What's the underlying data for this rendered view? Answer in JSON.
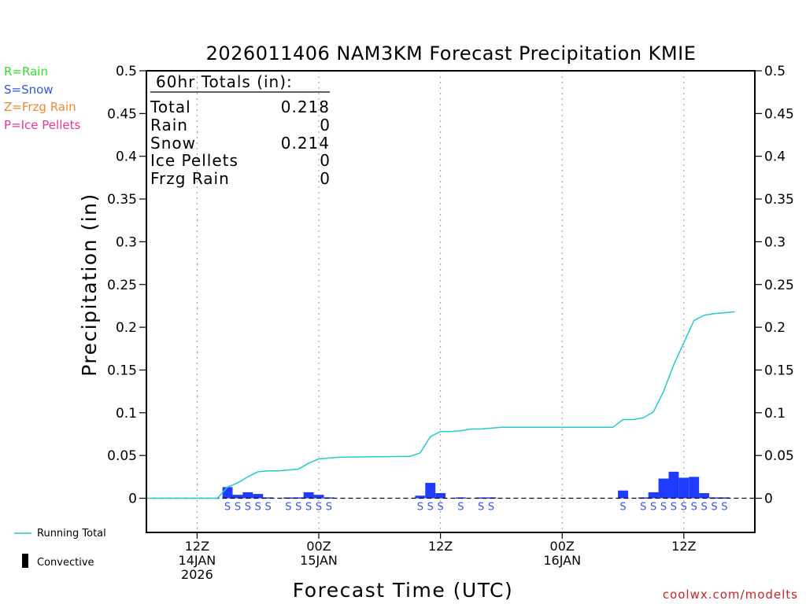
{
  "chart_data": {
    "type": "bar",
    "title": "2026011406 NAM3KM Forecast Precipitation KMIE",
    "ylabel": "Precipitation (in)",
    "xlabel": "Forecast Time (UTC)",
    "ylim": [
      -0.04,
      0.5
    ],
    "yticks": [
      0,
      0.05,
      0.1,
      0.15,
      0.2,
      0.25,
      0.3,
      0.35,
      0.4,
      0.45,
      0.5
    ],
    "xlim": [
      1,
      61
    ],
    "xticks": [
      {
        "hour": 6,
        "line1": "12Z",
        "line2": "14JAN",
        "line3": "2026"
      },
      {
        "hour": 18,
        "line1": "00Z",
        "line2": "15JAN",
        "line3": ""
      },
      {
        "hour": 30,
        "line1": "12Z",
        "line2": "",
        "line3": ""
      },
      {
        "hour": 42,
        "line1": "00Z",
        "line2": "16JAN",
        "line3": ""
      },
      {
        "hour": 54,
        "line1": "12Z",
        "line2": "",
        "line3": ""
      }
    ],
    "ptype_legend": [
      {
        "label": "R=Rain",
        "color": "#33dd33"
      },
      {
        "label": "S=Snow",
        "color": "#3355ee"
      },
      {
        "label": "Z=Frzg Rain",
        "color": "#ee8833"
      },
      {
        "label": "P=Ice Pellets",
        "color": "#ee3399"
      }
    ],
    "totals": {
      "header": "60hr Totals (in):",
      "rows": [
        {
          "label": "Total",
          "value": "0.218"
        },
        {
          "label": "Rain",
          "value": "0"
        },
        {
          "label": "Snow",
          "value": "0.214"
        },
        {
          "label": "Ice Pellets",
          "value": "0"
        },
        {
          "label": "Frzg Rain",
          "value": "0"
        }
      ]
    },
    "series": [
      {
        "name": "Hourly Precipitation",
        "color": "#1f3bff",
        "points": [
          {
            "hour": 9,
            "value": 0.013
          },
          {
            "hour": 10,
            "value": 0.004
          },
          {
            "hour": 11,
            "value": 0.007
          },
          {
            "hour": 12,
            "value": 0.005
          },
          {
            "hour": 13,
            "value": 0.001
          },
          {
            "hour": 15,
            "value": 0.0005
          },
          {
            "hour": 16,
            "value": 0.001
          },
          {
            "hour": 17,
            "value": 0.007
          },
          {
            "hour": 18,
            "value": 0.004
          },
          {
            "hour": 19,
            "value": 0.001
          },
          {
            "hour": 28,
            "value": 0.003
          },
          {
            "hour": 29,
            "value": 0.018
          },
          {
            "hour": 30,
            "value": 0.006
          },
          {
            "hour": 32,
            "value": 0.001
          },
          {
            "hour": 34,
            "value": 0.0005
          },
          {
            "hour": 35,
            "value": 0.001
          },
          {
            "hour": 48,
            "value": 0.009
          },
          {
            "hour": 50,
            "value": 0.001
          },
          {
            "hour": 51,
            "value": 0.007
          },
          {
            "hour": 52,
            "value": 0.023
          },
          {
            "hour": 53,
            "value": 0.031
          },
          {
            "hour": 54,
            "value": 0.024
          },
          {
            "hour": 55,
            "value": 0.025
          },
          {
            "hour": 56,
            "value": 0.006
          },
          {
            "hour": 57,
            "value": 0.001
          },
          {
            "hour": 58,
            "value": 0.001
          }
        ]
      },
      {
        "name": "Running Total",
        "color": "#22cccc",
        "points": [
          {
            "hour": 1,
            "value": 0
          },
          {
            "hour": 8,
            "value": 0
          },
          {
            "hour": 9,
            "value": 0.013
          },
          {
            "hour": 10,
            "value": 0.018
          },
          {
            "hour": 11,
            "value": 0.025
          },
          {
            "hour": 12,
            "value": 0.031
          },
          {
            "hour": 13,
            "value": 0.032
          },
          {
            "hour": 14,
            "value": 0.032
          },
          {
            "hour": 15,
            "value": 0.033
          },
          {
            "hour": 16,
            "value": 0.034
          },
          {
            "hour": 17,
            "value": 0.041
          },
          {
            "hour": 18,
            "value": 0.046
          },
          {
            "hour": 19,
            "value": 0.047
          },
          {
            "hour": 20,
            "value": 0.048
          },
          {
            "hour": 27,
            "value": 0.049
          },
          {
            "hour": 28,
            "value": 0.053
          },
          {
            "hour": 29,
            "value": 0.072
          },
          {
            "hour": 30,
            "value": 0.078
          },
          {
            "hour": 31,
            "value": 0.078
          },
          {
            "hour": 32,
            "value": 0.079
          },
          {
            "hour": 33,
            "value": 0.081
          },
          {
            "hour": 34,
            "value": 0.081
          },
          {
            "hour": 35,
            "value": 0.082
          },
          {
            "hour": 36,
            "value": 0.083
          },
          {
            "hour": 47,
            "value": 0.083
          },
          {
            "hour": 48,
            "value": 0.092
          },
          {
            "hour": 49,
            "value": 0.092
          },
          {
            "hour": 50,
            "value": 0.094
          },
          {
            "hour": 51,
            "value": 0.101
          },
          {
            "hour": 52,
            "value": 0.125
          },
          {
            "hour": 53,
            "value": 0.156
          },
          {
            "hour": 54,
            "value": 0.182
          },
          {
            "hour": 55,
            "value": 0.208
          },
          {
            "hour": 56,
            "value": 0.214
          },
          {
            "hour": 57,
            "value": 0.216
          },
          {
            "hour": 58,
            "value": 0.217
          },
          {
            "hour": 59,
            "value": 0.218
          }
        ]
      }
    ],
    "ptype_markers": {
      "symbol": "S",
      "color": "#3355ee",
      "hours": [
        9,
        10,
        11,
        12,
        13,
        15,
        16,
        17,
        18,
        19,
        28,
        29,
        30,
        32,
        34,
        35,
        48,
        50,
        51,
        52,
        53,
        54,
        55,
        56,
        57,
        58
      ]
    },
    "legend": [
      {
        "label": "Running Total",
        "color": "#22cccc",
        "kind": "line"
      },
      {
        "label": "Convective",
        "color": "#000000",
        "kind": "block"
      }
    ],
    "footer": "coolwx.com/modelts"
  }
}
